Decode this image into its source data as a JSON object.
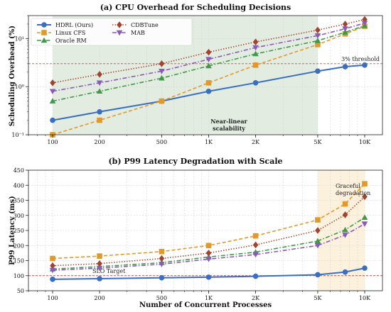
{
  "chart_data": [
    {
      "type": "line",
      "title": "(a) CPU Overhead for Scheduling Decisions",
      "xlabel": "",
      "ylabel": "Scheduling Overhead (%)",
      "yscale": "log",
      "ylim": [
        0.1,
        30
      ],
      "xscale": "log",
      "x": [
        100,
        200,
        500,
        1000,
        2000,
        5000,
        7500,
        10000
      ],
      "x_ticks": [
        100,
        200,
        500,
        1000,
        2000,
        5000,
        10000
      ],
      "x_tick_labels": [
        "100",
        "200",
        "500",
        "1K",
        "2K",
        "5K",
        "10K"
      ],
      "y_tick_labels": [
        "10⁻¹",
        "10⁰",
        "10¹"
      ],
      "grid": true,
      "legend": "top-left",
      "series": [
        {
          "name": "HDRL (Ours)",
          "values": [
            0.2,
            0.3,
            0.5,
            0.8,
            1.2,
            2.1,
            2.6,
            2.8
          ],
          "color": "#3a6fbf",
          "style": "solid",
          "marker": "circle"
        },
        {
          "name": "Linux CFS",
          "values": [
            0.1,
            0.2,
            0.5,
            1.2,
            2.8,
            7.5,
            12.5,
            18.0
          ],
          "color": "#e09a2c",
          "style": "dashed",
          "marker": "square"
        },
        {
          "name": "Oracle RM",
          "values": [
            0.5,
            0.8,
            1.5,
            2.7,
            4.8,
            9.0,
            13.5,
            18.5
          ],
          "color": "#3f9a48",
          "style": "dashdot",
          "marker": "triangle-up"
        },
        {
          "name": "CDBTune",
          "values": [
            1.2,
            1.8,
            3.0,
            5.2,
            8.5,
            15.0,
            20.0,
            25.0
          ],
          "color": "#a0442f",
          "style": "dotted",
          "marker": "diamond"
        },
        {
          "name": "MAB",
          "values": [
            0.8,
            1.2,
            2.1,
            3.7,
            6.5,
            11.5,
            16.0,
            21.0
          ],
          "color": "#8a5ab8",
          "style": "dashdot",
          "marker": "triangle-down"
        }
      ],
      "threshold": {
        "value": 3,
        "label": "3% threshold",
        "color": "#c0504d"
      },
      "shaded_region": {
        "x": [
          100,
          5000
        ],
        "color": "#dde9dc"
      },
      "annotation": {
        "text_line1": "Near-linear",
        "text_line2": "scalability",
        "color": "#2e6b34"
      }
    },
    {
      "type": "line",
      "title": "(b) P99 Latency Degradation with Scale",
      "xlabel": "Number of Concurrent Processes",
      "ylabel": "P99 Latency (ms)",
      "ylim": [
        50,
        450
      ],
      "xscale": "log",
      "x": [
        100,
        200,
        500,
        1000,
        2000,
        5000,
        7500,
        10000
      ],
      "x_ticks": [
        100,
        200,
        500,
        1000,
        2000,
        5000,
        10000
      ],
      "x_tick_labels": [
        "100",
        "200",
        "500",
        "1K",
        "2K",
        "5K",
        "10K"
      ],
      "y_ticks": [
        50,
        100,
        150,
        200,
        250,
        300,
        350,
        400,
        450
      ],
      "grid": true,
      "series": [
        {
          "values": [
            88,
            90,
            93,
            95,
            98,
            103,
            112,
            125
          ],
          "color": "#3a6fbf",
          "style": "solid",
          "marker": "circle"
        },
        {
          "values": [
            157,
            165,
            180,
            200,
            232,
            285,
            338,
            405
          ],
          "color": "#e09a2c",
          "style": "dashed",
          "marker": "square"
        },
        {
          "values": [
            122,
            130,
            143,
            162,
            178,
            215,
            252,
            293
          ],
          "color": "#3f9a48",
          "style": "dashdot",
          "marker": "triangle-up"
        },
        {
          "values": [
            133,
            140,
            157,
            175,
            202,
            250,
            302,
            362
          ],
          "color": "#a0442f",
          "style": "dotted",
          "marker": "diamond"
        },
        {
          "values": [
            118,
            125,
            138,
            155,
            170,
            200,
            235,
            272
          ],
          "color": "#8a5ab8",
          "style": "dashdot",
          "marker": "triangle-down"
        }
      ],
      "threshold": {
        "value": 100,
        "label": "SLO Target",
        "color": "#c0504d"
      },
      "shaded_region": {
        "x": [
          5000,
          10000
        ],
        "color": "#fbeed6"
      },
      "annotation": {
        "text_line1": "Graceful",
        "text_line2": "degradation",
        "color": "#d08a1e"
      }
    }
  ]
}
